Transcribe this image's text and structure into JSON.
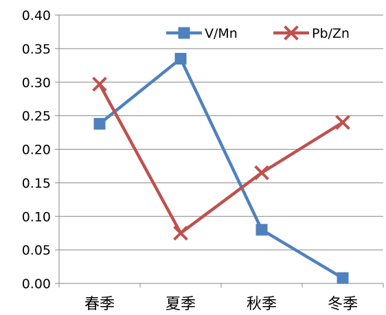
{
  "chart_data": {
    "type": "line",
    "categories": [
      "春季",
      "夏季",
      "秋季",
      "冬季"
    ],
    "series": [
      {
        "name": "V/Mn",
        "values": [
          0.238,
          0.335,
          0.08,
          0.008
        ],
        "color": "#4F81BD",
        "marker": "square"
      },
      {
        "name": "Pb/Zn",
        "values": [
          0.297,
          0.075,
          0.165,
          0.24
        ],
        "color": "#C0504D",
        "marker": "x"
      }
    ],
    "ylim": [
      0,
      0.4
    ],
    "yticks": [
      "0.00",
      "0.05",
      "0.10",
      "0.15",
      "0.20",
      "0.25",
      "0.30",
      "0.35",
      "0.40"
    ],
    "grid": true,
    "legend_position": "top-right"
  }
}
